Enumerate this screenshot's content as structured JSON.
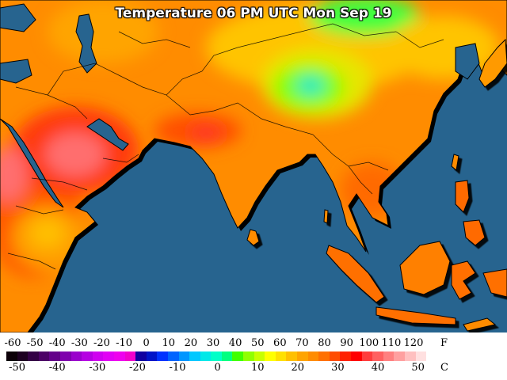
{
  "title": "Temperature 06 PM UTC Mon Sep 19",
  "colors": {
    "ocean": "#27648f",
    "coast": "#000000"
  },
  "legend": {
    "fahrenheit_unit": "F",
    "celsius_unit": "C",
    "fahrenheit_ticks": [
      "-60",
      "-50",
      "-40",
      "-30",
      "-20",
      "-10",
      "0",
      "10",
      "20",
      "30",
      "40",
      "50",
      "60",
      "70",
      "80",
      "90",
      "100",
      "110",
      "120"
    ],
    "celsius_ticks": [
      "-50",
      "-40",
      "-30",
      "-20",
      "-10",
      "0",
      "10",
      "20",
      "30",
      "40",
      "50"
    ],
    "scale_colors": [
      "#0c0008",
      "#1e0022",
      "#340045",
      "#4c0066",
      "#64008a",
      "#7f00ad",
      "#9a00cc",
      "#b500e2",
      "#cf00f0",
      "#e100f5",
      "#ee00ee",
      "#f000cc",
      "#1000a0",
      "#0014c8",
      "#0032ff",
      "#0064ff",
      "#0096ff",
      "#00c8ff",
      "#00e8e8",
      "#00ffc8",
      "#00ff80",
      "#40ff00",
      "#90ff00",
      "#c8ff00",
      "#ffff00",
      "#ffe000",
      "#ffc000",
      "#ffa400",
      "#ff8c00",
      "#ff7000",
      "#ff4c00",
      "#ff2000",
      "#ff0000",
      "#ff3c3c",
      "#ff6060",
      "#ff8080",
      "#ffa0a0",
      "#ffc0c0",
      "#ffe0e0",
      "#ffffff"
    ]
  }
}
